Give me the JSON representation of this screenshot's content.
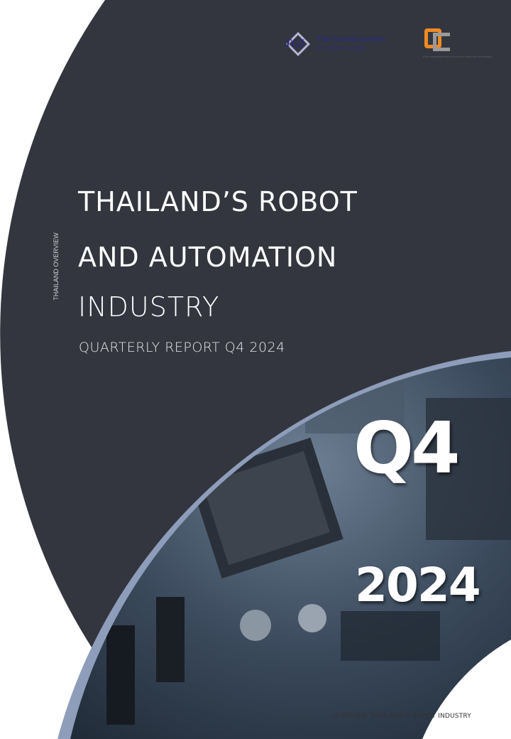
{
  "logos": {
    "tgi": {
      "mark": "TGI",
      "name_en": "Thai-German Institute",
      "name_th": "สถาบันไทย-เยอรมัน"
    },
    "oie": {
      "mark": "OIE",
      "caption_th": "สำนักงานเศรษฐกิจอุตสาหกรรม",
      "caption_en": "OFFICE OF INDUSTRIAL ECONOMICS"
    }
  },
  "side_label": "THAILAND OVERVIEW",
  "title": {
    "line1": "THAILAND’S ROBOT",
    "line2": "AND AUTOMATION",
    "line3": "INDUSTRY"
  },
  "subtitle": "QUARTERLY REPORT Q4 2024",
  "quarter": "Q4",
  "year": "2024",
  "footer": "OVERVIEW THAILAND’S ROBOT INDUSTRY",
  "colors": {
    "dark": "#33363e",
    "ring": "#8d9dba",
    "accent_orange": "#f08a24"
  }
}
